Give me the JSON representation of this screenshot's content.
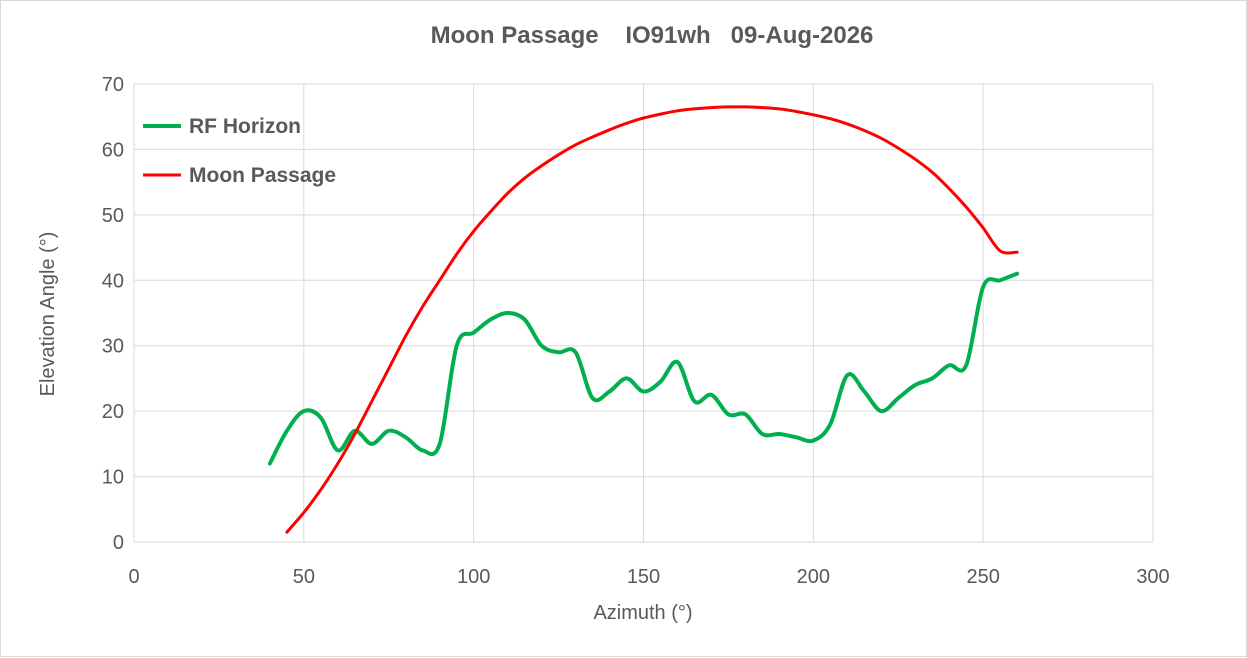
{
  "chart_data": {
    "type": "line",
    "title": "Moon Passage    IO91wh   09-Aug-2026",
    "xlabel": "Azimuth (°)",
    "ylabel": "Elevation Angle (°)",
    "xlim": [
      0,
      300
    ],
    "ylim": [
      0,
      70
    ],
    "xticks": [
      0,
      50,
      100,
      150,
      200,
      250,
      300
    ],
    "yticks": [
      0,
      10,
      20,
      30,
      40,
      50,
      60,
      70
    ],
    "grid": true,
    "legend_position": "top-left",
    "series": [
      {
        "name": "RF Horizon",
        "color": "#00b050",
        "points": [
          [
            40,
            12
          ],
          [
            45,
            17
          ],
          [
            50,
            20
          ],
          [
            55,
            19
          ],
          [
            60,
            14
          ],
          [
            65,
            17
          ],
          [
            70,
            15
          ],
          [
            75,
            17
          ],
          [
            80,
            16
          ],
          [
            85,
            14
          ],
          [
            90,
            15
          ],
          [
            95,
            30
          ],
          [
            100,
            32
          ],
          [
            105,
            34
          ],
          [
            110,
            35
          ],
          [
            115,
            34
          ],
          [
            120,
            30
          ],
          [
            125,
            29
          ],
          [
            130,
            29
          ],
          [
            135,
            22
          ],
          [
            140,
            23
          ],
          [
            145,
            25
          ],
          [
            150,
            23
          ],
          [
            155,
            24.5
          ],
          [
            160,
            27.5
          ],
          [
            165,
            21.5
          ],
          [
            170,
            22.5
          ],
          [
            175,
            19.5
          ],
          [
            180,
            19.5
          ],
          [
            185,
            16.5
          ],
          [
            190,
            16.5
          ],
          [
            195,
            16
          ],
          [
            200,
            15.5
          ],
          [
            205,
            18
          ],
          [
            210,
            25.5
          ],
          [
            215,
            23
          ],
          [
            220,
            20
          ],
          [
            225,
            22
          ],
          [
            230,
            24
          ],
          [
            235,
            25
          ],
          [
            240,
            27
          ],
          [
            245,
            27
          ],
          [
            250,
            39
          ],
          [
            255,
            40
          ],
          [
            260,
            41
          ]
        ]
      },
      {
        "name": "Moon Passage",
        "color": "#ff0000",
        "points": [
          [
            45,
            1.5
          ],
          [
            50,
            4.5
          ],
          [
            55,
            8
          ],
          [
            60,
            12
          ],
          [
            65,
            16.5
          ],
          [
            70,
            21.5
          ],
          [
            75,
            26.5
          ],
          [
            80,
            31.5
          ],
          [
            85,
            36
          ],
          [
            90,
            40
          ],
          [
            95,
            44
          ],
          [
            100,
            47.5
          ],
          [
            105,
            50.5
          ],
          [
            110,
            53.3
          ],
          [
            115,
            55.6
          ],
          [
            120,
            57.5
          ],
          [
            125,
            59.2
          ],
          [
            130,
            60.7
          ],
          [
            135,
            61.9
          ],
          [
            140,
            63
          ],
          [
            145,
            64
          ],
          [
            150,
            64.8
          ],
          [
            155,
            65.4
          ],
          [
            160,
            65.9
          ],
          [
            165,
            66.2
          ],
          [
            170,
            66.4
          ],
          [
            175,
            66.5
          ],
          [
            180,
            66.5
          ],
          [
            185,
            66.4
          ],
          [
            190,
            66.2
          ],
          [
            195,
            65.8
          ],
          [
            200,
            65.3
          ],
          [
            205,
            64.7
          ],
          [
            210,
            63.9
          ],
          [
            215,
            62.9
          ],
          [
            220,
            61.7
          ],
          [
            225,
            60.2
          ],
          [
            230,
            58.5
          ],
          [
            235,
            56.5
          ],
          [
            240,
            54
          ],
          [
            245,
            51.2
          ],
          [
            250,
            48
          ],
          [
            255,
            44.5
          ],
          [
            260,
            44.3
          ]
        ]
      }
    ]
  }
}
